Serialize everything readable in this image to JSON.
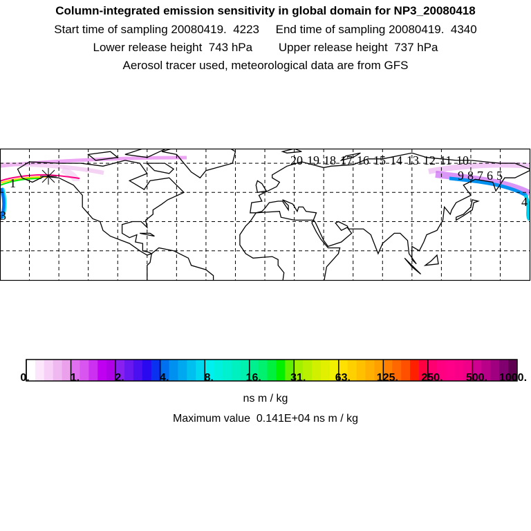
{
  "header": {
    "title": "Column-integrated emission sensitivity in global domain for NP3_20080418",
    "line1": "Start time of sampling 20080419.  4223     End time of sampling 20080419.  4340",
    "line2": "Lower release height  743 hPa        Upper release height  737 hPa",
    "line3": "Aerosol tracer used, meteorological data are from GFS"
  },
  "map": {
    "release_marker": "release-point-star",
    "trajectory_labels": [
      "1",
      "3",
      "20",
      "19",
      "18",
      "17",
      "16",
      "15",
      "14",
      "13",
      "12",
      "11",
      "10",
      "9",
      "8",
      "7",
      "6",
      "5",
      "4"
    ]
  },
  "colorbar": {
    "tick_labels": [
      "0.",
      "1.",
      "2.",
      "4.",
      "8.",
      "16.",
      "31.",
      "63.",
      "125.",
      "250.",
      "500.",
      "1000."
    ],
    "unit": "ns m / kg",
    "colors": [
      [
        "#ffffff",
        "#fbe6fb",
        "#f6d0f6",
        "#f0b8f0",
        "#eaa0ea"
      ],
      [
        "#e070f0",
        "#d855f0",
        "#cc30f0",
        "#c000f0",
        "#b000e8"
      ],
      [
        "#8a20f0",
        "#6a18f0",
        "#4a10f0",
        "#2a08f0",
        "#0a30f0"
      ],
      [
        "#0070f0",
        "#0090f0",
        "#00a8f0",
        "#00c0f0",
        "#00d8f0"
      ],
      [
        "#00f0f0",
        "#00f0e0",
        "#00f0d0",
        "#00f0c0",
        "#00f0b0"
      ],
      [
        "#00f090",
        "#00f070",
        "#00f040",
        "#00f000",
        "#60f000"
      ],
      [
        "#a0f000",
        "#b8f000",
        "#d0f000",
        "#e0f000",
        "#f0f000"
      ],
      [
        "#ffe000",
        "#ffd000",
        "#ffc000",
        "#ffb000",
        "#ffa000"
      ],
      [
        "#ff8000",
        "#ff6800",
        "#ff5000",
        "#ff2000",
        "#ff0040"
      ],
      [
        "#ff0070",
        "#ff0080",
        "#ff0088",
        "#f80088",
        "#f00088"
      ],
      [
        "#d00090",
        "#b80088",
        "#a00080",
        "#800070",
        "#600050"
      ]
    ]
  },
  "footer": {
    "max_value": "Maximum value  0.141E+04 ns m / kg"
  }
}
